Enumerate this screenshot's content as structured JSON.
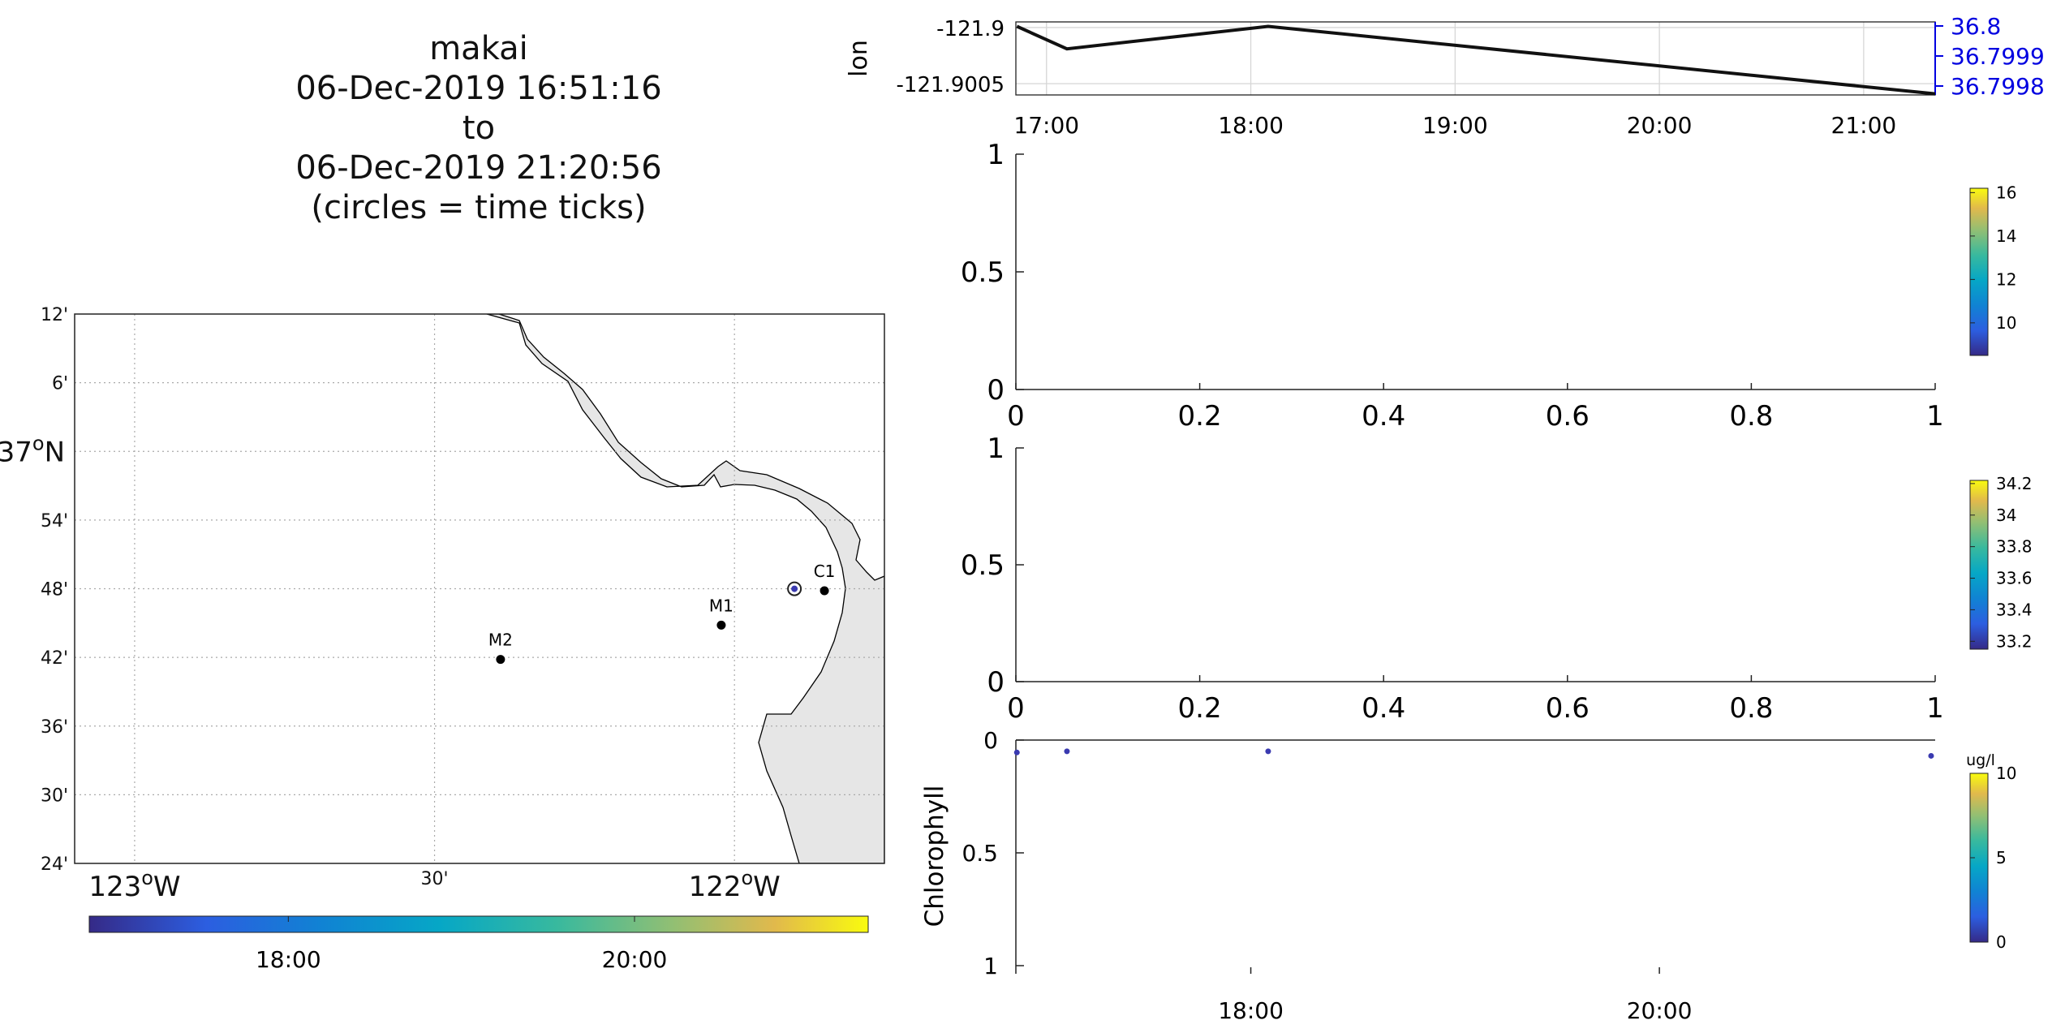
{
  "title": {
    "vehicle": "makai",
    "start": "06-Dec-2019 16:51:16",
    "to": "to",
    "end": "06-Dec-2019 21:20:56",
    "note": "(circles = time ticks)"
  },
  "colors": {
    "land": "#e6e6e6",
    "axis": "#222222",
    "track": "#111111",
    "right_axis": "#0000e0",
    "marker": "#3a3ab0",
    "grid": "#aaaaaa"
  },
  "chart_data": [
    {
      "id": "map",
      "type": "scatter",
      "lon_range": [
        -123.1,
        -121.75
      ],
      "lat_range": [
        36.4,
        37.2
      ],
      "lon_ticks": [
        {
          "v": -123.0,
          "label": "123",
          "unit": "o",
          "suffix": "W"
        },
        {
          "v": -122.5,
          "label": "30'",
          "unit": "",
          "suffix": ""
        },
        {
          "v": -122.0,
          "label": "122",
          "unit": "o",
          "suffix": "W"
        }
      ],
      "lat_ticks": [
        {
          "v": 37.2,
          "label": "12'"
        },
        {
          "v": 37.1,
          "label": "6'"
        },
        {
          "v": 37.0,
          "label": "37",
          "unit": "o",
          "suffix": "N"
        },
        {
          "v": 36.9,
          "label": "54'"
        },
        {
          "v": 36.8,
          "label": "48'"
        },
        {
          "v": 36.7,
          "label": "42'"
        },
        {
          "v": 36.6,
          "label": "36'"
        },
        {
          "v": 36.5,
          "label": "30'"
        },
        {
          "v": 36.4,
          "label": "24'"
        }
      ],
      "grid": true,
      "stations": [
        {
          "name": "C1",
          "lon": -121.85,
          "lat": 36.797
        },
        {
          "name": "M1",
          "lon": -122.022,
          "lat": 36.747
        },
        {
          "name": "M2",
          "lon": -122.39,
          "lat": 36.697
        }
      ],
      "vehicle_position": {
        "lon": -121.9,
        "lat": 36.7999
      },
      "colorbar": {
        "ticks": [
          {
            "v": 18,
            "label": "18:00"
          },
          {
            "v": 20,
            "label": "20:00"
          }
        ],
        "range": [
          16.85,
          21.35
        ],
        "colormap": "parula"
      }
    },
    {
      "id": "lon-lat",
      "type": "line",
      "ylabel": "lon",
      "x_range": [
        16.85,
        21.35
      ],
      "x_ticks": [
        {
          "v": 17,
          "label": "17:00"
        },
        {
          "v": 18,
          "label": "18:00"
        },
        {
          "v": 19,
          "label": "19:00"
        },
        {
          "v": 20,
          "label": "20:00"
        },
        {
          "v": 21,
          "label": "21:00"
        }
      ],
      "y_range": [
        -121.9006,
        -121.89995
      ],
      "y_ticks": [
        {
          "v": -121.9,
          "label": "-121.9"
        },
        {
          "v": -121.9005,
          "label": "-121.9005"
        }
      ],
      "right_ticks": [
        {
          "label": "36.8"
        },
        {
          "label": "36.7999"
        },
        {
          "label": "36.7998"
        }
      ],
      "grid": true,
      "x": [
        16.855,
        17.1,
        18.085,
        21.35
      ],
      "y": [
        -121.89999,
        -121.90019,
        -121.89999,
        -121.90059
      ]
    },
    {
      "id": "temperature",
      "type": "scatter",
      "x_range": [
        0,
        1
      ],
      "y_range": [
        0,
        1
      ],
      "x_ticks": [
        {
          "v": 0,
          "label": "0"
        },
        {
          "v": 0.2,
          "label": "0.2"
        },
        {
          "v": 0.4,
          "label": "0.4"
        },
        {
          "v": 0.6,
          "label": "0.6"
        },
        {
          "v": 0.8,
          "label": "0.8"
        },
        {
          "v": 1,
          "label": "1"
        }
      ],
      "y_ticks": [
        {
          "v": 0,
          "label": "0"
        },
        {
          "v": 0.5,
          "label": "0.5"
        },
        {
          "v": 1,
          "label": "1"
        }
      ],
      "colorbar": {
        "range": [
          8.5,
          16.2
        ],
        "ticks": [
          {
            "v": 10,
            "label": "10"
          },
          {
            "v": 12,
            "label": "12"
          },
          {
            "v": 14,
            "label": "14"
          },
          {
            "v": 16,
            "label": "16"
          }
        ]
      }
    },
    {
      "id": "salinity",
      "type": "scatter",
      "x_range": [
        0,
        1
      ],
      "y_range": [
        0,
        1
      ],
      "x_ticks": [
        {
          "v": 0,
          "label": "0"
        },
        {
          "v": 0.2,
          "label": "0.2"
        },
        {
          "v": 0.4,
          "label": "0.4"
        },
        {
          "v": 0.6,
          "label": "0.6"
        },
        {
          "v": 0.8,
          "label": "0.8"
        },
        {
          "v": 1,
          "label": "1"
        }
      ],
      "y_ticks": [
        {
          "v": 0,
          "label": "0"
        },
        {
          "v": 0.5,
          "label": "0.5"
        },
        {
          "v": 1,
          "label": "1"
        }
      ],
      "colorbar": {
        "range": [
          33.15,
          34.22
        ],
        "ticks": [
          {
            "v": 33.2,
            "label": "33.2"
          },
          {
            "v": 33.4,
            "label": "33.4"
          },
          {
            "v": 33.6,
            "label": "33.6"
          },
          {
            "v": 33.8,
            "label": "33.8"
          },
          {
            "v": 34.0,
            "label": "34"
          },
          {
            "v": 34.2,
            "label": "34.2"
          }
        ]
      }
    },
    {
      "id": "chlorophyll",
      "type": "scatter",
      "ylabel": "Chlorophyll",
      "x_range": [
        16.85,
        21.35
      ],
      "y_range": [
        0,
        1
      ],
      "y_reversed": true,
      "x_ticks": [
        {
          "v": 18,
          "label": "18:00"
        },
        {
          "v": 20,
          "label": "20:00"
        }
      ],
      "y_ticks": [
        {
          "v": 0,
          "label": "0"
        },
        {
          "v": 0.5,
          "label": "0.5"
        },
        {
          "v": 1,
          "label": "1"
        }
      ],
      "x": [
        16.855,
        17.1,
        18.085,
        21.33
      ],
      "y": [
        0.055,
        0.05,
        0.05,
        0.07
      ],
      "colorbar": {
        "unit": "ug/l",
        "range": [
          0,
          10
        ],
        "ticks": [
          {
            "v": 0,
            "label": "0"
          },
          {
            "v": 5,
            "label": "5"
          },
          {
            "v": 10,
            "label": "10"
          }
        ]
      }
    }
  ]
}
